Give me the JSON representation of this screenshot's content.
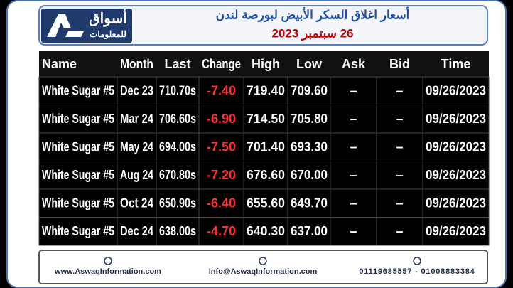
{
  "header": {
    "logo_text": "أسواق",
    "logo_subtext": "للمعلومات",
    "title": "أسعار اغلاق السكر الأبيض لبورصة لندن",
    "date": "26 سبتمبر 2023"
  },
  "table": {
    "columns": [
      "Name",
      "Month",
      "Last",
      "Change",
      "High",
      "Low",
      "Ask",
      "Bid",
      "Time"
    ],
    "rows": [
      [
        "White Sugar #5",
        "Dec 23",
        "710.70s",
        "-7.40",
        "719.40",
        "709.60",
        "–",
        "–",
        "09/26/2023"
      ],
      [
        "White Sugar #5",
        "Mar 24",
        "706.60s",
        "-6.90",
        "714.50",
        "705.80",
        "–",
        "–",
        "09/26/2023"
      ],
      [
        "White Sugar #5",
        "May 24",
        "694.00s",
        "-7.50",
        "701.40",
        "693.30",
        "–",
        "–",
        "09/26/2023"
      ],
      [
        "White Sugar #5",
        "Aug 24",
        "670.80s",
        "-7.20",
        "676.60",
        "670.00",
        "–",
        "–",
        "09/26/2023"
      ],
      [
        "White Sugar #5",
        "Oct 24",
        "650.90s",
        "-6.40",
        "655.60",
        "649.70",
        "–",
        "–",
        "09/26/2023"
      ],
      [
        "White Sugar #5",
        "Dec 24",
        "638.00s",
        "-4.70",
        "640.30",
        "637.00",
        "–",
        "–",
        "09/26/2023"
      ]
    ]
  },
  "footer": {
    "website": "www.AswaqInformation.com",
    "email": "Info@AswaqInformation.com",
    "phones": "01119685557 - 01008883384"
  }
}
